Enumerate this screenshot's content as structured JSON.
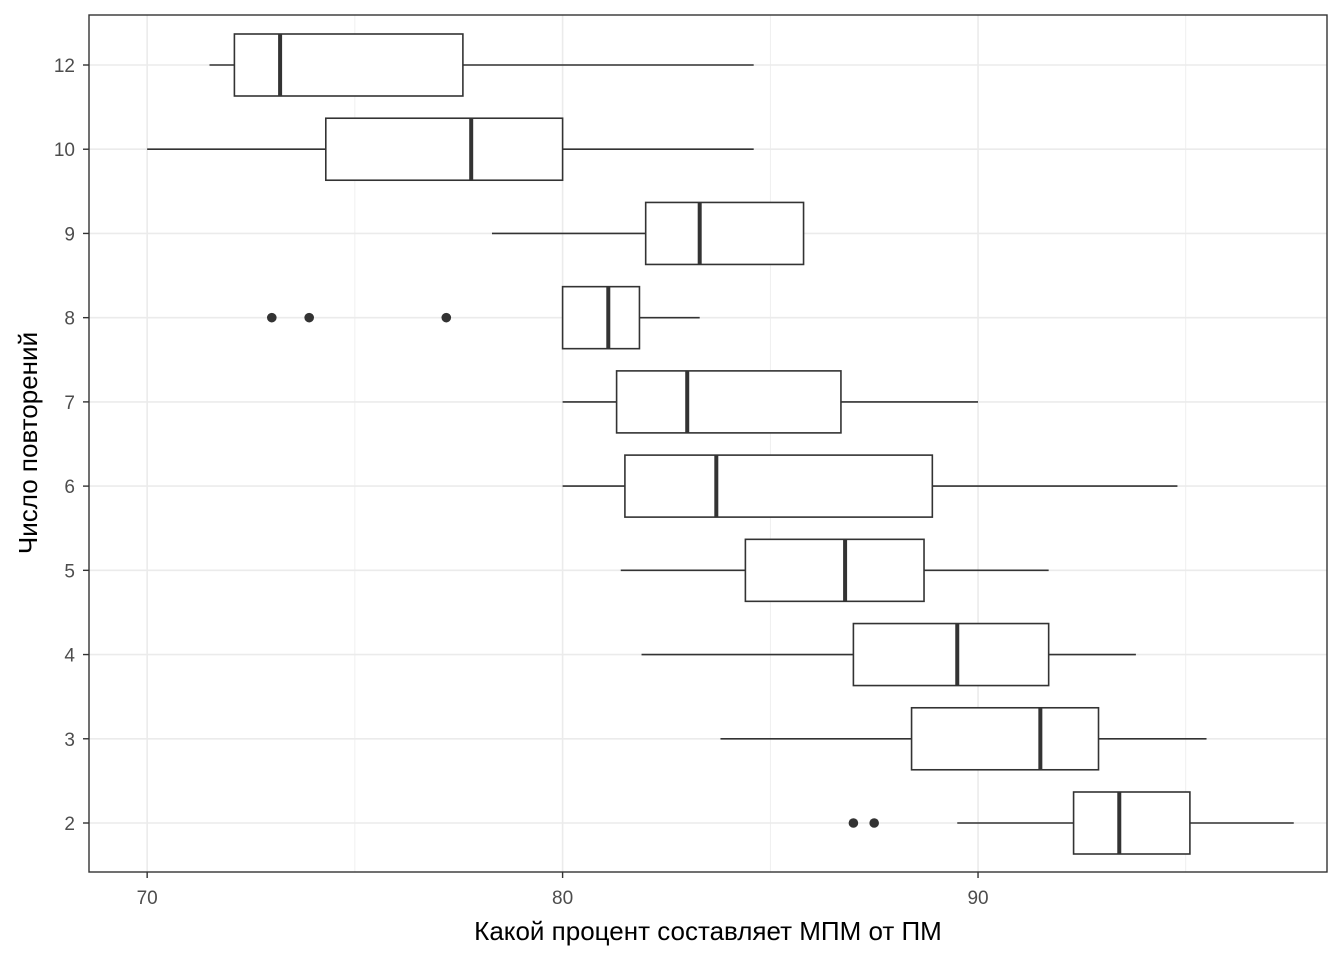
{
  "chart_data": {
    "type": "boxplot",
    "orientation": "horizontal",
    "title": "",
    "xlabel": "Какой процент составляет МПМ от ПМ",
    "ylabel": "Число повторений",
    "xlim": [
      68.6,
      98.4
    ],
    "x_ticks": [
      70,
      80,
      90
    ],
    "x_minor_ticks": [
      75,
      85,
      95
    ],
    "categories": [
      "2",
      "3",
      "4",
      "5",
      "6",
      "7",
      "8",
      "9",
      "10",
      "12"
    ],
    "grid": true,
    "legend": "none",
    "colors": {
      "box_stroke": "#333333",
      "grid": "#ebebeb",
      "panel_border": "#333333",
      "box_fill": "#ffffff"
    },
    "boxes": [
      {
        "category": "2",
        "whisker_low": 89.5,
        "q1": 92.3,
        "median": 93.4,
        "q3": 95.1,
        "whisker_high": 97.6,
        "outliers": [
          87.0,
          87.5
        ]
      },
      {
        "category": "3",
        "whisker_low": 83.8,
        "q1": 88.4,
        "median": 91.5,
        "q3": 92.9,
        "whisker_high": 95.5,
        "outliers": []
      },
      {
        "category": "4",
        "whisker_low": 81.9,
        "q1": 87.0,
        "median": 89.5,
        "q3": 91.7,
        "whisker_high": 93.8,
        "outliers": []
      },
      {
        "category": "5",
        "whisker_low": 81.4,
        "q1": 84.4,
        "median": 86.8,
        "q3": 88.7,
        "whisker_high": 91.7,
        "outliers": []
      },
      {
        "category": "6",
        "whisker_low": 80.0,
        "q1": 81.5,
        "median": 83.7,
        "q3": 88.9,
        "whisker_high": 94.8,
        "outliers": []
      },
      {
        "category": "7",
        "whisker_low": 80.0,
        "q1": 81.3,
        "median": 83.0,
        "q3": 86.7,
        "whisker_high": 90.0,
        "outliers": []
      },
      {
        "category": "8",
        "whisker_low": 80.0,
        "q1": 80.0,
        "median": 81.1,
        "q3": 81.85,
        "whisker_high": 83.3,
        "outliers": [
          73.0,
          73.9,
          77.2
        ]
      },
      {
        "category": "9",
        "whisker_low": 78.3,
        "q1": 82.0,
        "median": 83.3,
        "q3": 85.8,
        "whisker_high": 85.8,
        "outliers": []
      },
      {
        "category": "10",
        "whisker_low": 70.0,
        "q1": 74.3,
        "median": 77.8,
        "q3": 80.0,
        "whisker_high": 84.6,
        "outliers": []
      },
      {
        "category": "12",
        "whisker_low": 71.5,
        "q1": 72.1,
        "median": 73.2,
        "q3": 77.6,
        "whisker_high": 84.6,
        "outliers": []
      }
    ]
  }
}
